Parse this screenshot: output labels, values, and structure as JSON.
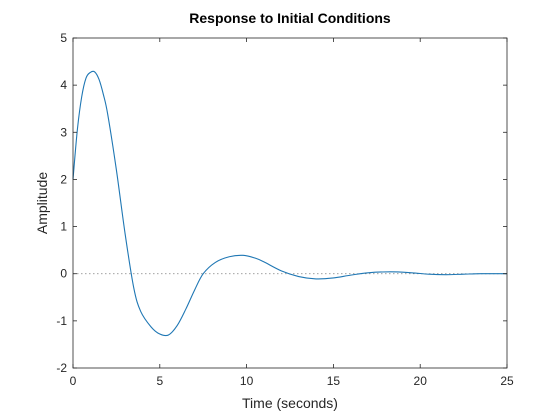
{
  "chart_data": {
    "type": "line",
    "title": "Response to Initial Conditions",
    "xlabel": "Time (seconds)",
    "ylabel": "Amplitude",
    "xlim": [
      0,
      25
    ],
    "ylim": [
      -2,
      5
    ],
    "x_ticks": [
      0,
      5,
      10,
      15,
      20,
      25
    ],
    "y_ticks": [
      -2,
      -1,
      0,
      1,
      2,
      3,
      4,
      5
    ],
    "grid": false,
    "legend": "none",
    "reference_line": {
      "y": 0,
      "style": "dotted",
      "color": "#808080"
    },
    "series": [
      {
        "color": "#1f77b4",
        "x": [
          0,
          0.25,
          0.5,
          0.75,
          1.0,
          1.25,
          1.5,
          1.75,
          2.0,
          2.5,
          3.0,
          3.5,
          3.9,
          4.5,
          5.0,
          5.5,
          6.0,
          6.5,
          7.0,
          7.5,
          8.2,
          9.0,
          9.8,
          10.5,
          11.0,
          12.0,
          13.0,
          14.0,
          15.0,
          16.0,
          17.0,
          18.3,
          19.5,
          20.5,
          21.5,
          22.5,
          23.5,
          25.0
        ],
        "y": [
          2.0,
          3.05,
          3.75,
          4.15,
          4.27,
          4.28,
          4.12,
          3.8,
          3.38,
          2.2,
          0.85,
          -0.3,
          -0.8,
          -1.13,
          -1.28,
          -1.3,
          -1.1,
          -0.75,
          -0.35,
          0.0,
          0.24,
          0.36,
          0.39,
          0.33,
          0.25,
          0.06,
          -0.06,
          -0.11,
          -0.09,
          -0.03,
          0.02,
          0.04,
          0.02,
          -0.01,
          -0.02,
          -0.01,
          0.0,
          0.0
        ]
      }
    ]
  }
}
